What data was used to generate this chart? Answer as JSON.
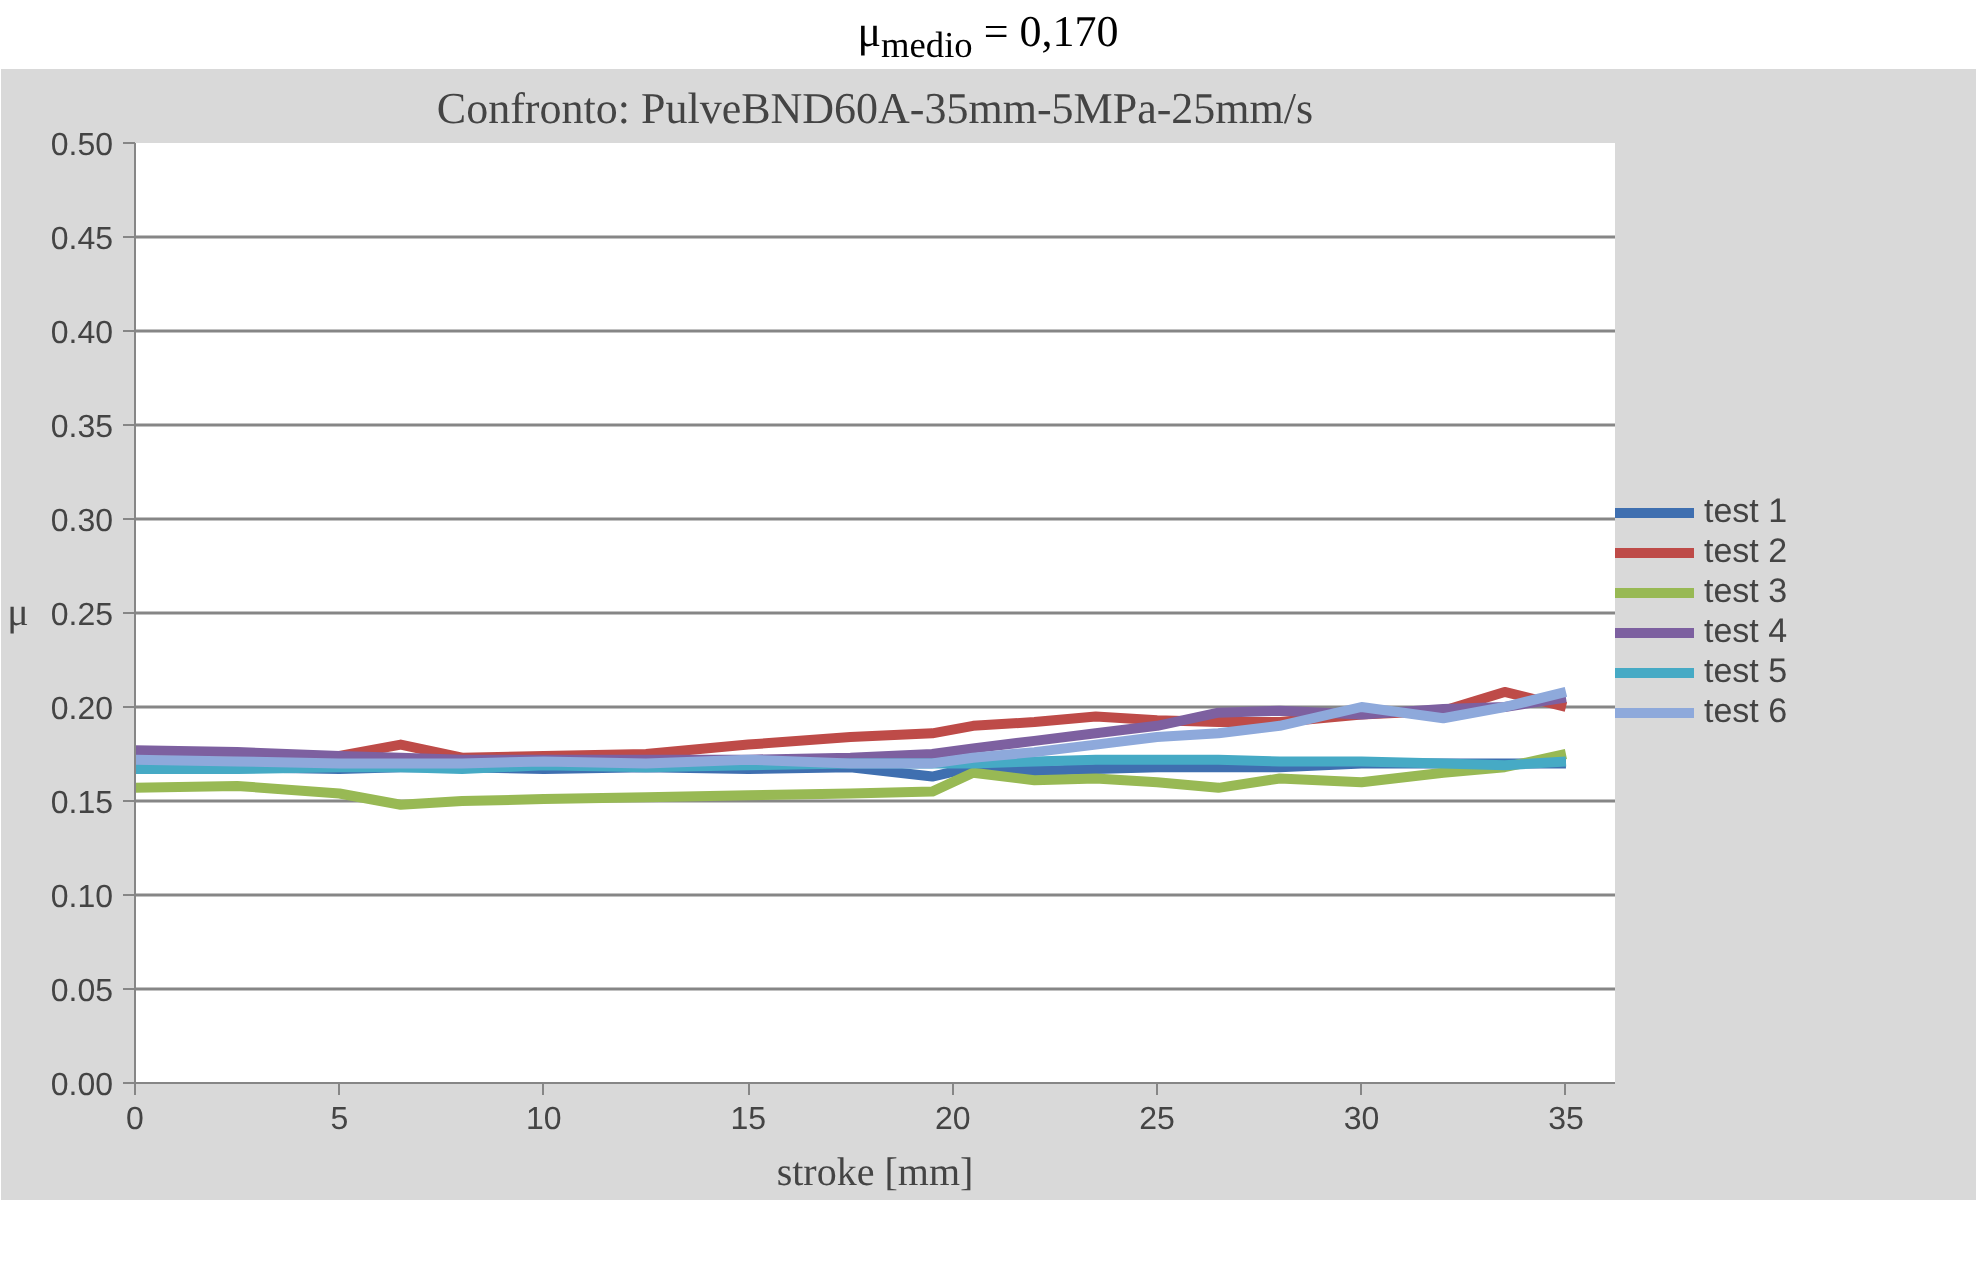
{
  "chart_data": {
    "type": "line",
    "subtitle": "μ$_{medio}$ = 0,170",
    "title": "Confronto: PulveBND60A-35mm-5MPa-25mm/s",
    "ylabel": "μ",
    "xlabel": "stroke [mm]",
    "xlim": [
      0,
      36.2
    ],
    "xticks": [
      0,
      5,
      10,
      15,
      20,
      25,
      30,
      35
    ],
    "ylim": [
      0,
      0.5
    ],
    "yticks": [
      {
        "value": 0,
        "label": "0.00"
      },
      {
        "value": 0.05,
        "label": "0.05"
      },
      {
        "value": 0.1,
        "label": "0.10"
      },
      {
        "value": 0.15,
        "label": "0.15"
      },
      {
        "value": 0.2,
        "label": "0.20"
      },
      {
        "value": 0.25,
        "label": "0.25"
      },
      {
        "value": 0.3,
        "label": "0.30"
      },
      {
        "value": 0.35,
        "label": "0.35"
      },
      {
        "value": 0.4,
        "label": "0.40"
      },
      {
        "value": 0.45,
        "label": "0.45"
      },
      {
        "value": 0.5,
        "label": "0.50"
      }
    ],
    "grid": "y",
    "legend": "right",
    "marker": "none",
    "line_style": "solid",
    "x": [
      0,
      2.5,
      5,
      6.5,
      8,
      10,
      12.5,
      15,
      17.5,
      19.5,
      20.5,
      22,
      23.5,
      25,
      26.5,
      28,
      30,
      32,
      33.5,
      35
    ],
    "series": [
      {
        "name": "test 1",
        "color": "#3f6fb0",
        "values": [
          0.168,
          0.168,
          0.167,
          0.168,
          0.168,
          0.167,
          0.168,
          0.167,
          0.168,
          0.163,
          0.168,
          0.166,
          0.167,
          0.168,
          0.168,
          0.168,
          0.17,
          0.17,
          0.17,
          0.17
        ]
      },
      {
        "name": "test 2",
        "color": "#be4b48",
        "values": [
          0.172,
          0.173,
          0.174,
          0.18,
          0.173,
          0.174,
          0.175,
          0.18,
          0.184,
          0.186,
          0.19,
          0.192,
          0.195,
          0.193,
          0.192,
          0.192,
          0.196,
          0.198,
          0.208,
          0.2
        ]
      },
      {
        "name": "test 3",
        "color": "#98b954",
        "values": [
          0.157,
          0.158,
          0.154,
          0.148,
          0.15,
          0.151,
          0.152,
          0.153,
          0.154,
          0.155,
          0.165,
          0.161,
          0.162,
          0.16,
          0.157,
          0.162,
          0.16,
          0.165,
          0.168,
          0.175
        ]
      },
      {
        "name": "test 4",
        "color": "#7d60a0",
        "values": [
          0.177,
          0.176,
          0.174,
          0.173,
          0.172,
          0.172,
          0.172,
          0.172,
          0.173,
          0.175,
          0.178,
          0.182,
          0.186,
          0.19,
          0.197,
          0.198,
          0.196,
          0.199,
          0.2,
          0.205
        ]
      },
      {
        "name": "test 5",
        "color": "#46aac5",
        "values": [
          0.167,
          0.167,
          0.168,
          0.168,
          0.167,
          0.169,
          0.168,
          0.169,
          0.17,
          0.17,
          0.17,
          0.171,
          0.172,
          0.172,
          0.172,
          0.171,
          0.171,
          0.17,
          0.169,
          0.171
        ]
      },
      {
        "name": "test 6",
        "color": "#8ea9db",
        "values": [
          0.172,
          0.171,
          0.17,
          0.17,
          0.17,
          0.171,
          0.17,
          0.172,
          0.17,
          0.17,
          0.173,
          0.176,
          0.18,
          0.184,
          0.186,
          0.19,
          0.2,
          0.194,
          0.2,
          0.208
        ]
      }
    ]
  }
}
